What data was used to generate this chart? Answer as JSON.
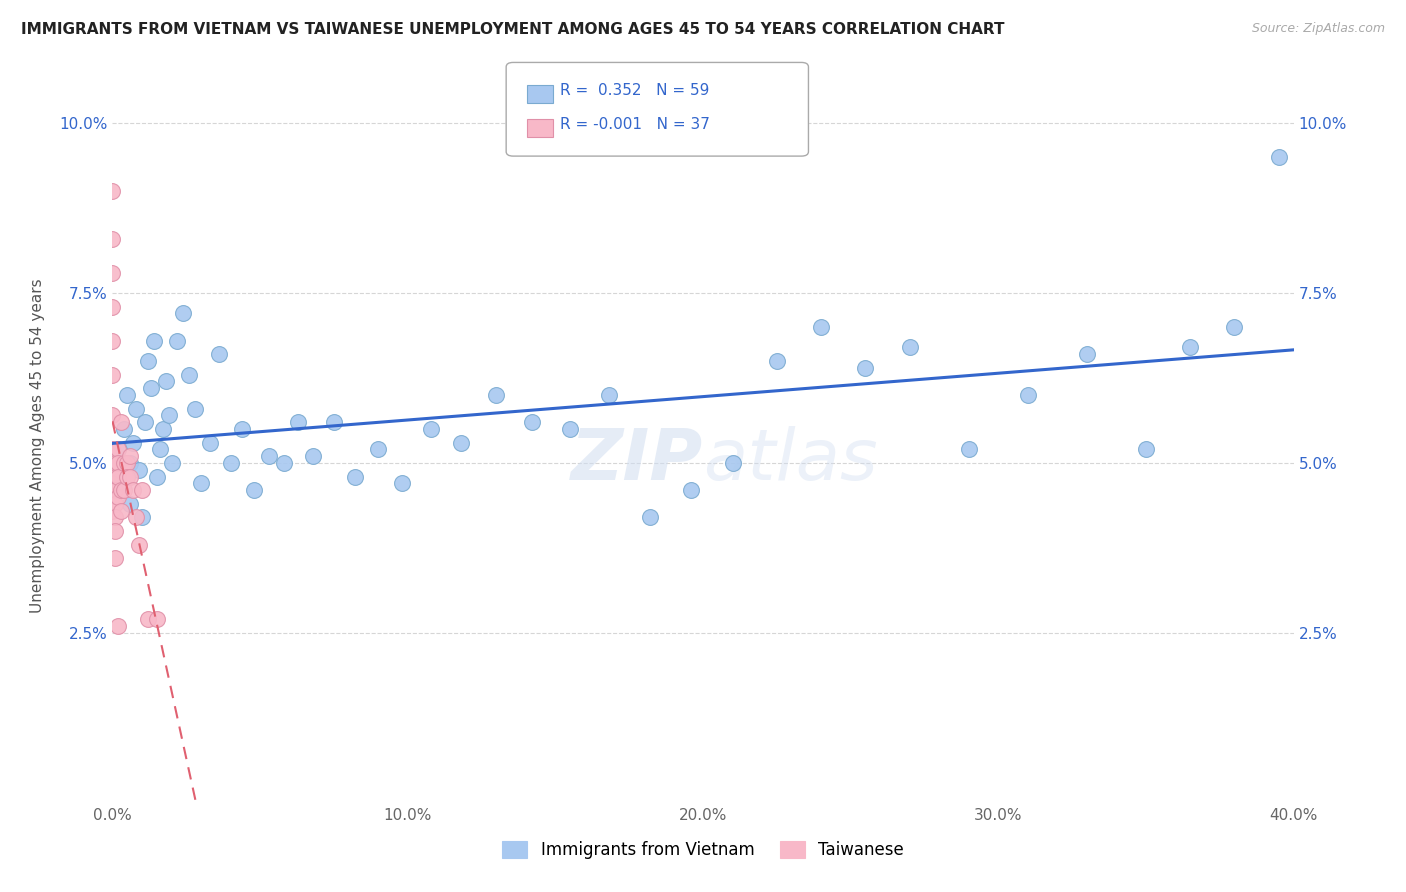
{
  "title": "IMMIGRANTS FROM VIETNAM VS TAIWANESE UNEMPLOYMENT AMONG AGES 45 TO 54 YEARS CORRELATION CHART",
  "source": "Source: ZipAtlas.com",
  "ylabel": "Unemployment Among Ages 45 to 54 years",
  "xmin": 0.0,
  "xmax": 0.4,
  "ymin": 0.0,
  "ymax": 0.105,
  "yticks": [
    0.025,
    0.05,
    0.075,
    0.1
  ],
  "ytick_labels": [
    "2.5%",
    "5.0%",
    "7.5%",
    "10.0%"
  ],
  "xticks": [
    0.0,
    0.1,
    0.2,
    0.3,
    0.4
  ],
  "xtick_labels": [
    "0.0%",
    "10.0%",
    "20.0%",
    "30.0%",
    "40.0%"
  ],
  "vietnam_R": 0.352,
  "vietnam_N": 59,
  "taiwanese_R": -0.001,
  "taiwanese_N": 37,
  "vietnam_color": "#a8c8f0",
  "vietnamese_edge_color": "#7aaad0",
  "taiwanese_color": "#f8b8c8",
  "taiwanese_edge_color": "#e090a8",
  "vietnam_line_color": "#3366cc",
  "taiwanese_line_color": "#e06070",
  "legend_label_vietnam": "Immigrants from Vietnam",
  "legend_label_taiwanese": "Taiwanese",
  "watermark": "ZIPatlas",
  "vietnam_x": [
    0.001,
    0.002,
    0.003,
    0.004,
    0.005,
    0.006,
    0.006,
    0.007,
    0.008,
    0.009,
    0.01,
    0.011,
    0.012,
    0.013,
    0.014,
    0.015,
    0.016,
    0.017,
    0.018,
    0.019,
    0.02,
    0.022,
    0.024,
    0.026,
    0.028,
    0.03,
    0.033,
    0.036,
    0.04,
    0.044,
    0.048,
    0.053,
    0.058,
    0.063,
    0.068,
    0.075,
    0.082,
    0.09,
    0.098,
    0.108,
    0.118,
    0.13,
    0.142,
    0.155,
    0.168,
    0.182,
    0.196,
    0.21,
    0.225,
    0.24,
    0.255,
    0.27,
    0.29,
    0.31,
    0.33,
    0.35,
    0.365,
    0.38,
    0.395
  ],
  "vietnam_y": [
    0.048,
    0.052,
    0.046,
    0.055,
    0.06,
    0.05,
    0.044,
    0.053,
    0.058,
    0.049,
    0.042,
    0.056,
    0.065,
    0.061,
    0.068,
    0.048,
    0.052,
    0.055,
    0.062,
    0.057,
    0.05,
    0.068,
    0.072,
    0.063,
    0.058,
    0.047,
    0.053,
    0.066,
    0.05,
    0.055,
    0.046,
    0.051,
    0.05,
    0.056,
    0.051,
    0.056,
    0.048,
    0.052,
    0.047,
    0.055,
    0.053,
    0.06,
    0.056,
    0.055,
    0.06,
    0.042,
    0.046,
    0.05,
    0.065,
    0.07,
    0.064,
    0.067,
    0.052,
    0.06,
    0.066,
    0.052,
    0.067,
    0.07,
    0.095
  ],
  "taiwanese_x": [
    0.0,
    0.0,
    0.0,
    0.0,
    0.0,
    0.0,
    0.0,
    0.0,
    0.0,
    0.0,
    0.001,
    0.001,
    0.001,
    0.001,
    0.001,
    0.001,
    0.001,
    0.002,
    0.002,
    0.002,
    0.002,
    0.002,
    0.003,
    0.003,
    0.003,
    0.004,
    0.004,
    0.005,
    0.005,
    0.006,
    0.006,
    0.007,
    0.008,
    0.009,
    0.01,
    0.012,
    0.015
  ],
  "taiwanese_y": [
    0.09,
    0.083,
    0.078,
    0.073,
    0.068,
    0.063,
    0.057,
    0.052,
    0.047,
    0.043,
    0.05,
    0.048,
    0.046,
    0.044,
    0.042,
    0.04,
    0.036,
    0.052,
    0.05,
    0.048,
    0.045,
    0.026,
    0.056,
    0.046,
    0.043,
    0.05,
    0.046,
    0.05,
    0.048,
    0.051,
    0.048,
    0.046,
    0.042,
    0.038,
    0.046,
    0.027,
    0.027
  ]
}
